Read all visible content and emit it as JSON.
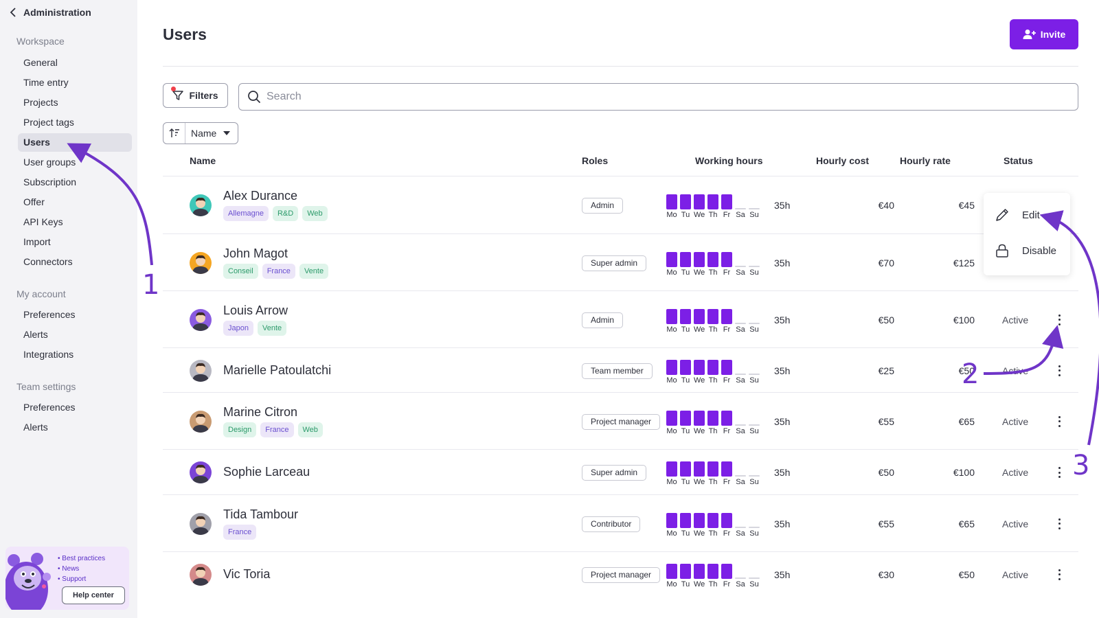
{
  "sidebar": {
    "back_label": "Administration",
    "sections": [
      {
        "title": "Workspace",
        "items": [
          "General",
          "Time entry",
          "Projects",
          "Project tags",
          "Users",
          "User groups",
          "Subscription",
          "Offer",
          "API Keys",
          "Import",
          "Connectors"
        ]
      },
      {
        "title": "My account",
        "items": [
          "Preferences",
          "Alerts",
          "Integrations"
        ]
      },
      {
        "title": "Team settings",
        "items": [
          "Preferences",
          "Alerts"
        ]
      }
    ],
    "active_item": "Users",
    "help": {
      "links": [
        "Best practices",
        "News",
        "Support"
      ],
      "button": "Help center"
    }
  },
  "header": {
    "title": "Users",
    "invite_label": "Invite"
  },
  "toolbar": {
    "filters_label": "Filters",
    "search_placeholder": "Search",
    "sort_label": "Name"
  },
  "table": {
    "columns": [
      "Name",
      "Roles",
      "Working hours",
      "Hourly cost",
      "Hourly rate",
      "Status"
    ],
    "days": [
      "Mo",
      "Tu",
      "We",
      "Th",
      "Fr",
      "Sa",
      "Su"
    ],
    "rows": [
      {
        "name": "Alex Durance",
        "tags": [
          {
            "t": "Allemagne",
            "c": "p"
          },
          {
            "t": "R&D",
            "c": "g"
          },
          {
            "t": "Web",
            "c": "g"
          }
        ],
        "role": "Admin",
        "hours": "35h",
        "cost": "€40",
        "rate": "€45",
        "status": ""
      },
      {
        "name": "John Magot",
        "tags": [
          {
            "t": "Conseil",
            "c": "g"
          },
          {
            "t": "France",
            "c": "p"
          },
          {
            "t": "Vente",
            "c": "g"
          }
        ],
        "role": "Super admin",
        "hours": "35h",
        "cost": "€70",
        "rate": "€125",
        "status": ""
      },
      {
        "name": "Louis Arrow",
        "tags": [
          {
            "t": "Japon",
            "c": "p"
          },
          {
            "t": "Vente",
            "c": "g"
          }
        ],
        "role": "Admin",
        "hours": "35h",
        "cost": "€50",
        "rate": "€100",
        "status": "Active"
      },
      {
        "name": "Marielle Patoulatchi",
        "tags": [],
        "role": "Team member",
        "hours": "35h",
        "cost": "€25",
        "rate": "€50",
        "status": "Active"
      },
      {
        "name": "Marine Citron",
        "tags": [
          {
            "t": "Design",
            "c": "g"
          },
          {
            "t": "France",
            "c": "p"
          },
          {
            "t": "Web",
            "c": "g"
          }
        ],
        "role": "Project manager",
        "hours": "35h",
        "cost": "€55",
        "rate": "€65",
        "status": "Active"
      },
      {
        "name": "Sophie Larceau",
        "tags": [],
        "role": "Super admin",
        "hours": "35h",
        "cost": "€50",
        "rate": "€100",
        "status": "Active"
      },
      {
        "name": "Tida Tambour",
        "tags": [
          {
            "t": "France",
            "c": "p"
          }
        ],
        "role": "Contributor",
        "hours": "35h",
        "cost": "€55",
        "rate": "€65",
        "status": "Active"
      },
      {
        "name": "Vic Toria",
        "tags": [],
        "role": "Project manager",
        "hours": "35h",
        "cost": "€30",
        "rate": "€50",
        "status": "Active"
      }
    ]
  },
  "context_menu": {
    "items": [
      {
        "label": "Edit",
        "icon": "pencil-icon"
      },
      {
        "label": "Disable",
        "icon": "lock-icon"
      }
    ]
  },
  "annotations": [
    "1",
    "2",
    "3"
  ],
  "colors": {
    "accent": "#7c1fe6",
    "annotation": "#6f35c8"
  }
}
